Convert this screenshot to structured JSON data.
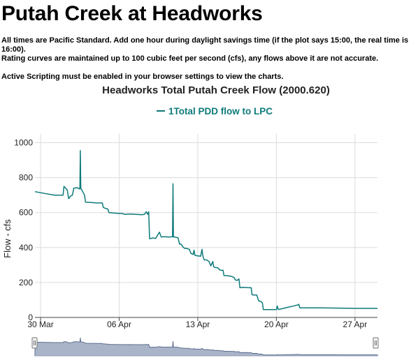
{
  "page": {
    "title": "Putah Creek at Headworks",
    "notes": [
      "All times are Pacific Standard. Add one hour during daylight savings time (if the plot says 15:00, the real time is 16:00).",
      "Rating curves are maintained up to 100 cubic feet per second (cfs), any flows above it are not accurate.",
      "Active Scripting must be enabled in your browser settings to view the charts."
    ]
  },
  "colors": {
    "series": "#0e7a7a",
    "navigator_fill": "#aab4c8",
    "navigator_line": "#5c6f8e",
    "grid": "#dcdcdc"
  },
  "chart_data": {
    "type": "line",
    "title": "Headworks Total Putah Creek Flow (2000.620)",
    "ylabel": "Flow - cfs",
    "xlabel": "",
    "ylim": [
      0,
      1050
    ],
    "yticks": [
      0,
      200,
      400,
      600,
      800,
      1000
    ],
    "xlim": [
      "2000-03-29T12:00",
      "2000-04-29T00:00"
    ],
    "xticks": [
      {
        "label": "30 Mar",
        "date": "2000-03-30T00:00"
      },
      {
        "label": "06 Apr",
        "date": "2000-04-06T00:00"
      },
      {
        "label": "13 Apr",
        "date": "2000-04-13T00:00"
      },
      {
        "label": "20 Apr",
        "date": "2000-04-20T00:00"
      },
      {
        "label": "27 Apr",
        "date": "2000-04-27T00:00"
      }
    ],
    "grid": true,
    "legend_position": "top-center",
    "series": [
      {
        "name": "1Total PDD flow to LPC",
        "points": [
          [
            "2000-03-29T12:00",
            720
          ],
          [
            "2000-03-30T12:00",
            708
          ],
          [
            "2000-03-31T06:00",
            700
          ],
          [
            "2000-03-31T12:00",
            700
          ],
          [
            "2000-04-01T00:00",
            700
          ],
          [
            "2000-04-01T02:00",
            750
          ],
          [
            "2000-04-01T06:00",
            738
          ],
          [
            "2000-04-01T09:00",
            730
          ],
          [
            "2000-04-01T12:00",
            680
          ],
          [
            "2000-04-01T16:00",
            695
          ],
          [
            "2000-04-01T20:00",
            700
          ],
          [
            "2000-04-01T23:00",
            740
          ],
          [
            "2000-04-02T06:00",
            742
          ],
          [
            "2000-04-02T12:00",
            735
          ],
          [
            "2000-04-02T13:00",
            955
          ],
          [
            "2000-04-02T14:00",
            740
          ],
          [
            "2000-04-02T18:00",
            720
          ],
          [
            "2000-04-02T22:00",
            700
          ],
          [
            "2000-04-03T00:00",
            660
          ],
          [
            "2000-04-03T12:00",
            658
          ],
          [
            "2000-04-04T00:00",
            655
          ],
          [
            "2000-04-04T12:00",
            655
          ],
          [
            "2000-04-04T14:00",
            630
          ],
          [
            "2000-04-04T18:00",
            625
          ],
          [
            "2000-04-05T00:00",
            620
          ],
          [
            "2000-04-05T02:00",
            600
          ],
          [
            "2000-04-05T12:00",
            598
          ],
          [
            "2000-04-06T00:00",
            595
          ],
          [
            "2000-04-06T06:00",
            595
          ],
          [
            "2000-04-06T12:00",
            590
          ],
          [
            "2000-04-07T00:00",
            592
          ],
          [
            "2000-04-07T12:00",
            590
          ],
          [
            "2000-04-08T00:00",
            588
          ],
          [
            "2000-04-08T06:00",
            590
          ],
          [
            "2000-04-08T10:00",
            605
          ],
          [
            "2000-04-08T13:00",
            590
          ],
          [
            "2000-04-08T15:00",
            605
          ],
          [
            "2000-04-08T17:00",
            450
          ],
          [
            "2000-04-09T00:00",
            455
          ],
          [
            "2000-04-09T06:00",
            452
          ],
          [
            "2000-04-09T10:00",
            470
          ],
          [
            "2000-04-09T14:00",
            488
          ],
          [
            "2000-04-09T18:00",
            460
          ],
          [
            "2000-04-10T00:00",
            462
          ],
          [
            "2000-04-10T12:00",
            460
          ],
          [
            "2000-04-10T18:00",
            462
          ],
          [
            "2000-04-10T19:00",
            765
          ],
          [
            "2000-04-10T20:00",
            460
          ],
          [
            "2000-04-11T00:00",
            460
          ],
          [
            "2000-04-11T06:00",
            455
          ],
          [
            "2000-04-11T09:00",
            420
          ],
          [
            "2000-04-11T12:00",
            420
          ],
          [
            "2000-04-11T16:00",
            405
          ],
          [
            "2000-04-11T20:00",
            395
          ],
          [
            "2000-04-12T00:00",
            395
          ],
          [
            "2000-04-12T06:00",
            390
          ],
          [
            "2000-04-12T09:00",
            368
          ],
          [
            "2000-04-12T14:00",
            360
          ],
          [
            "2000-04-12T16:00",
            385
          ],
          [
            "2000-04-12T18:00",
            355
          ],
          [
            "2000-04-13T00:00",
            352
          ],
          [
            "2000-04-13T06:00",
            350
          ],
          [
            "2000-04-13T09:00",
            390
          ],
          [
            "2000-04-13T11:00",
            350
          ],
          [
            "2000-04-13T14:00",
            328
          ],
          [
            "2000-04-13T18:00",
            330
          ],
          [
            "2000-04-14T00:00",
            320
          ],
          [
            "2000-04-14T04:00",
            295
          ],
          [
            "2000-04-14T08:00",
            320
          ],
          [
            "2000-04-14T10:00",
            290
          ],
          [
            "2000-04-14T14:00",
            285
          ],
          [
            "2000-04-14T18:00",
            285
          ],
          [
            "2000-04-15T00:00",
            270
          ],
          [
            "2000-04-15T06:00",
            270
          ],
          [
            "2000-04-15T08:00",
            240
          ],
          [
            "2000-04-15T18:00",
            238
          ],
          [
            "2000-04-16T00:00",
            235
          ],
          [
            "2000-04-16T06:00",
            228
          ],
          [
            "2000-04-16T08:00",
            215
          ],
          [
            "2000-04-16T12:00",
            212
          ],
          [
            "2000-04-16T16:00",
            220
          ],
          [
            "2000-04-16T18:00",
            170
          ],
          [
            "2000-04-17T00:00",
            172
          ],
          [
            "2000-04-17T12:00",
            170
          ],
          [
            "2000-04-17T18:00",
            170
          ],
          [
            "2000-04-17T20:00",
            130
          ],
          [
            "2000-04-18T00:00",
            128
          ],
          [
            "2000-04-18T06:00",
            128
          ],
          [
            "2000-04-18T10:00",
            95
          ],
          [
            "2000-04-18T14:00",
            92
          ],
          [
            "2000-04-18T18:00",
            85
          ],
          [
            "2000-04-18T20:00",
            45
          ],
          [
            "2000-04-19T12:00",
            45
          ],
          [
            "2000-04-20T00:00",
            45
          ],
          [
            "2000-04-20T02:00",
            65
          ],
          [
            "2000-04-20T04:00",
            45
          ],
          [
            "2000-04-20T12:00",
            50
          ],
          [
            "2000-04-21T00:00",
            58
          ],
          [
            "2000-04-21T12:00",
            65
          ],
          [
            "2000-04-21T22:00",
            72
          ],
          [
            "2000-04-22T00:00",
            75
          ],
          [
            "2000-04-22T02:00",
            55
          ],
          [
            "2000-04-23T00:00",
            55
          ],
          [
            "2000-04-24T00:00",
            55
          ],
          [
            "2000-04-25T00:00",
            54
          ],
          [
            "2000-04-26T00:00",
            53
          ],
          [
            "2000-04-27T00:00",
            52
          ],
          [
            "2000-04-28T00:00",
            52
          ],
          [
            "2000-04-29T00:00",
            52
          ]
        ]
      }
    ]
  }
}
